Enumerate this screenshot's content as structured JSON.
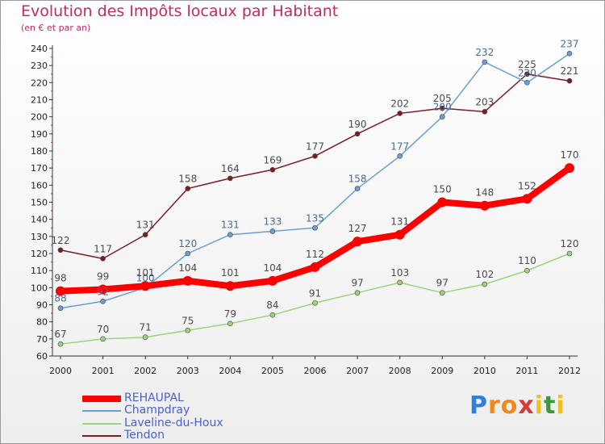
{
  "title": "Evolution des Impôts locaux par Habitant",
  "subtitle": "(en € et par an)",
  "brand": {
    "letters": [
      "P",
      "r",
      "o",
      "x",
      "i",
      "t",
      "i"
    ],
    "colors": [
      "#2f7fe0",
      "#f08a1a",
      "#f08a1a",
      "#d83a3a",
      "#f0c020",
      "#3a9a3a",
      "#f0c020"
    ]
  },
  "chart_data": {
    "type": "line",
    "title": "Evolution des Impôts locaux par Habitant",
    "subtitle": "(en € et par an)",
    "xlabel": "",
    "ylabel": "",
    "x": [
      "2000",
      "2001",
      "2002",
      "2003",
      "2004",
      "2005",
      "2006",
      "2007",
      "2008",
      "2009",
      "2010",
      "2011",
      "2012"
    ],
    "ylim": [
      60,
      240
    ],
    "yticks": [
      60,
      70,
      80,
      90,
      100,
      110,
      120,
      130,
      140,
      150,
      160,
      170,
      180,
      190,
      200,
      210,
      220,
      230,
      240
    ],
    "grid": false,
    "legend": "bottom-left",
    "series": [
      {
        "name": "Tendon",
        "color": "#7a1e22",
        "labelColor": "#4a4a4a",
        "values": [
          122,
          117,
          131,
          158,
          164,
          169,
          177,
          190,
          202,
          205,
          203,
          225,
          221
        ]
      },
      {
        "name": "Champdray",
        "color": "#6a9fd4",
        "labelColor": "#4a6a9a",
        "values": [
          88,
          92,
          100,
          120,
          131,
          133,
          135,
          158,
          177,
          200,
          232,
          220,
          237
        ]
      },
      {
        "name": "Laveline-du-Houx",
        "color": "#9dd47a",
        "labelColor": "#4a4a4a",
        "values": [
          67,
          70,
          71,
          75,
          79,
          84,
          91,
          97,
          103,
          97,
          102,
          110,
          120
        ]
      },
      {
        "name": "REHAUPAL",
        "color": "#ff0000",
        "labelColor": "#4a4a4a",
        "values": [
          98,
          99,
          101,
          104,
          101,
          104,
          112,
          127,
          131,
          150,
          148,
          152,
          170
        ]
      }
    ]
  },
  "legend": [
    {
      "name": "REHAUPAL",
      "color": "#ff0000",
      "weight": 8
    },
    {
      "name": "Champdray",
      "color": "#6a9fd4",
      "weight": 2
    },
    {
      "name": "Laveline-du-Houx",
      "color": "#9dd47a",
      "weight": 2
    },
    {
      "name": "Tendon",
      "color": "#7a1e22",
      "weight": 2
    }
  ]
}
